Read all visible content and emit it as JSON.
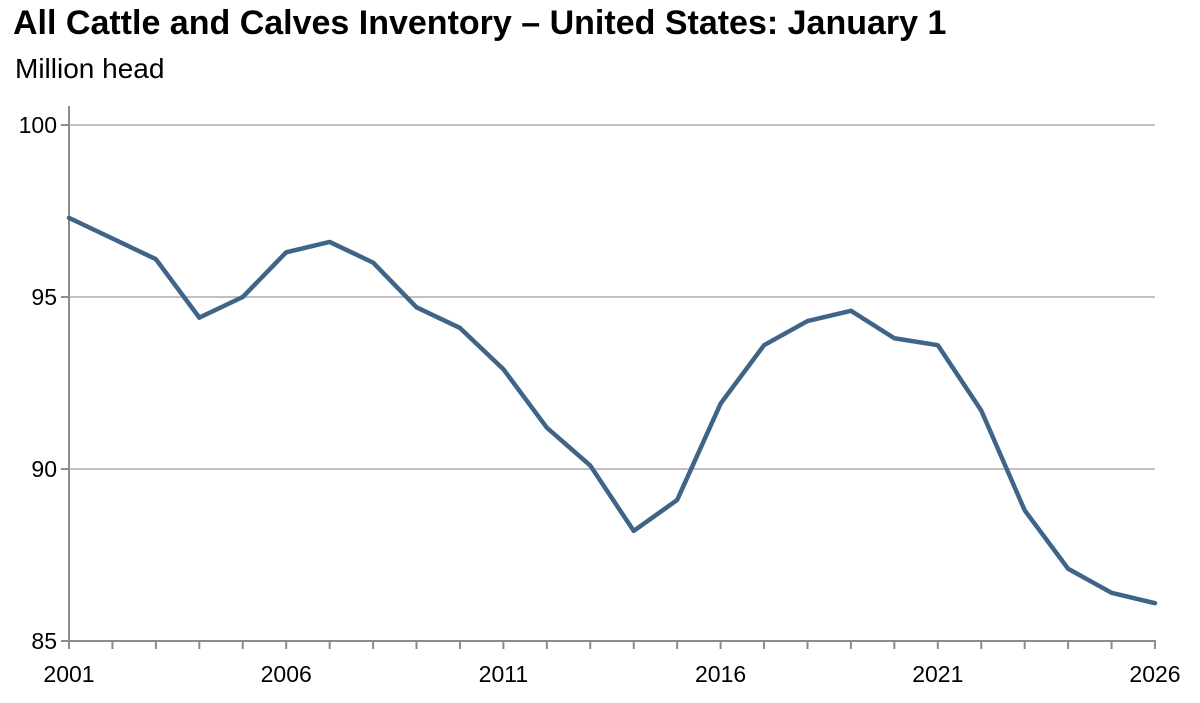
{
  "page": {
    "title": "All Cattle and Calves Inventory – United States: January 1",
    "units_label": "Million head"
  },
  "chart_data": {
    "type": "line",
    "title": "All Cattle and Calves Inventory – United States: January 1",
    "ylabel": "Million head",
    "xlabel": "",
    "x": [
      2001,
      2002,
      2003,
      2004,
      2005,
      2006,
      2007,
      2008,
      2009,
      2010,
      2011,
      2012,
      2013,
      2014,
      2015,
      2016,
      2017,
      2018,
      2019,
      2020,
      2021,
      2022,
      2023,
      2024,
      2025,
      2026
    ],
    "values": [
      97.3,
      96.7,
      96.1,
      94.4,
      95.0,
      96.3,
      96.6,
      96.0,
      94.7,
      94.1,
      92.9,
      91.2,
      90.1,
      88.2,
      89.1,
      91.9,
      93.6,
      94.3,
      94.6,
      93.8,
      93.6,
      91.7,
      88.8,
      87.1,
      86.4,
      86.1
    ],
    "xlim": [
      2001,
      2026
    ],
    "ylim": [
      85,
      100
    ],
    "yticks": [
      85,
      90,
      95,
      100
    ],
    "xticks_labeled": [
      2001,
      2006,
      2011,
      2016,
      2021,
      2026
    ],
    "xtick_minor_step": 1,
    "grid": "horizontal",
    "legend": "none",
    "colors": {
      "line": "#3f6487",
      "grid": "#ababab",
      "axis": "#8c8c8c",
      "text": "#000000",
      "background": "#ffffff"
    }
  }
}
